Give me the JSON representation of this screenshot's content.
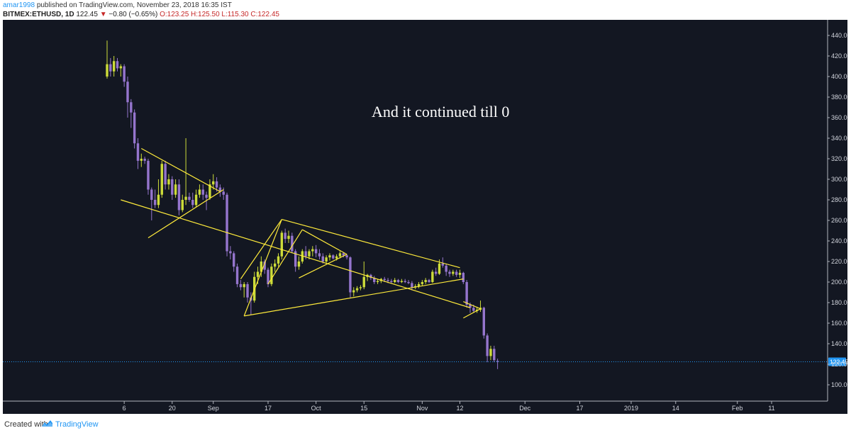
{
  "header": {
    "user": "amar1998",
    "published_text": "published on TradingView.com, November 23, 2018 16:35 IST",
    "symbol": "BITMEX:ETHUSD, 1D",
    "last": "122.45",
    "arrow": "▼",
    "change": "−0.80 (−0.65%)",
    "ohlc": "O:123.25 H:125.50 L:115.30 C:122.45"
  },
  "footer": {
    "created_with": "Created with",
    "brand": "TradingView"
  },
  "colors": {
    "background": "#131722",
    "up_candle": "#cddc39",
    "down_candle": "#9575cd",
    "trendline": "#ffeb3b",
    "price_line": "#2196f3"
  },
  "chart_data": {
    "type": "candlestick",
    "symbol": "BITMEX:ETHUSD",
    "interval": "1D",
    "annotation": "And it continued till 0",
    "last_price": "122.45",
    "grid": false,
    "y_axis": {
      "position": "right",
      "ylim": [
        100,
        440
      ],
      "ticks": [
        "440.00",
        "420.00",
        "400.00",
        "380.00",
        "360.00",
        "340.00",
        "320.00",
        "300.00",
        "280.00",
        "260.00",
        "240.00",
        "220.00",
        "200.00",
        "180.00",
        "160.00",
        "140.00",
        "120.00",
        "100.00"
      ]
    },
    "x_axis": {
      "ticks": [
        {
          "label": "6",
          "date": "2018-08-06"
        },
        {
          "label": "20",
          "date": "2018-08-20"
        },
        {
          "label": "Sep",
          "date": "2018-09-01"
        },
        {
          "label": "17",
          "date": "2018-09-17"
        },
        {
          "label": "Oct",
          "date": "2018-10-01"
        },
        {
          "label": "15",
          "date": "2018-10-15"
        },
        {
          "label": "Nov",
          "date": "2018-11-01"
        },
        {
          "label": "12",
          "date": "2018-11-12"
        },
        {
          "label": "Dec",
          "date": "2018-12-01"
        },
        {
          "label": "17",
          "date": "2018-12-17"
        },
        {
          "label": "2019",
          "date": "2019-01-01"
        },
        {
          "label": "14",
          "date": "2019-01-14"
        },
        {
          "label": "Feb",
          "date": "2019-02-01"
        },
        {
          "label": "11",
          "date": "2019-02-11"
        }
      ]
    },
    "candles": [
      {
        "date": "2018-08-01",
        "o": 400,
        "h": 435,
        "l": 398,
        "c": 412
      },
      {
        "date": "2018-08-02",
        "o": 412,
        "h": 418,
        "l": 400,
        "c": 405
      },
      {
        "date": "2018-08-03",
        "o": 405,
        "h": 420,
        "l": 400,
        "c": 415
      },
      {
        "date": "2018-08-04",
        "o": 415,
        "h": 418,
        "l": 405,
        "c": 408
      },
      {
        "date": "2018-08-05",
        "o": 408,
        "h": 412,
        "l": 400,
        "c": 410
      },
      {
        "date": "2018-08-06",
        "o": 410,
        "h": 412,
        "l": 390,
        "c": 395
      },
      {
        "date": "2018-08-07",
        "o": 395,
        "h": 400,
        "l": 360,
        "c": 375
      },
      {
        "date": "2018-08-08",
        "o": 375,
        "h": 378,
        "l": 350,
        "c": 365
      },
      {
        "date": "2018-08-09",
        "o": 365,
        "h": 368,
        "l": 330,
        "c": 335
      },
      {
        "date": "2018-08-10",
        "o": 335,
        "h": 340,
        "l": 310,
        "c": 318
      },
      {
        "date": "2018-08-11",
        "o": 318,
        "h": 325,
        "l": 312,
        "c": 320
      },
      {
        "date": "2018-08-12",
        "o": 320,
        "h": 322,
        "l": 315,
        "c": 318
      },
      {
        "date": "2018-08-13",
        "o": 318,
        "h": 320,
        "l": 285,
        "c": 290
      },
      {
        "date": "2018-08-14",
        "o": 290,
        "h": 292,
        "l": 260,
        "c": 280
      },
      {
        "date": "2018-08-15",
        "o": 280,
        "h": 290,
        "l": 272,
        "c": 275
      },
      {
        "date": "2018-08-16",
        "o": 275,
        "h": 300,
        "l": 272,
        "c": 285
      },
      {
        "date": "2018-08-17",
        "o": 285,
        "h": 318,
        "l": 282,
        "c": 315
      },
      {
        "date": "2018-08-18",
        "o": 315,
        "h": 318,
        "l": 290,
        "c": 295
      },
      {
        "date": "2018-08-19",
        "o": 295,
        "h": 305,
        "l": 290,
        "c": 300
      },
      {
        "date": "2018-08-20",
        "o": 300,
        "h": 303,
        "l": 280,
        "c": 285
      },
      {
        "date": "2018-08-21",
        "o": 285,
        "h": 300,
        "l": 282,
        "c": 295
      },
      {
        "date": "2018-08-22",
        "o": 295,
        "h": 300,
        "l": 265,
        "c": 270
      },
      {
        "date": "2018-08-23",
        "o": 270,
        "h": 285,
        "l": 268,
        "c": 280
      },
      {
        "date": "2018-08-24",
        "o": 280,
        "h": 340,
        "l": 275,
        "c": 283
      },
      {
        "date": "2018-08-25",
        "o": 283,
        "h": 287,
        "l": 278,
        "c": 280
      },
      {
        "date": "2018-08-26",
        "o": 280,
        "h": 287,
        "l": 272,
        "c": 275
      },
      {
        "date": "2018-08-27",
        "o": 275,
        "h": 290,
        "l": 273,
        "c": 285
      },
      {
        "date": "2018-08-28",
        "o": 285,
        "h": 295,
        "l": 282,
        "c": 290
      },
      {
        "date": "2018-08-29",
        "o": 290,
        "h": 295,
        "l": 280,
        "c": 285
      },
      {
        "date": "2018-08-30",
        "o": 285,
        "h": 288,
        "l": 270,
        "c": 282
      },
      {
        "date": "2018-08-31",
        "o": 282,
        "h": 300,
        "l": 280,
        "c": 295
      },
      {
        "date": "2018-09-01",
        "o": 295,
        "h": 305,
        "l": 290,
        "c": 298
      },
      {
        "date": "2018-09-02",
        "o": 298,
        "h": 302,
        "l": 288,
        "c": 292
      },
      {
        "date": "2018-09-03",
        "o": 292,
        "h": 295,
        "l": 283,
        "c": 288
      },
      {
        "date": "2018-09-04",
        "o": 288,
        "h": 292,
        "l": 280,
        "c": 285
      },
      {
        "date": "2018-09-05",
        "o": 285,
        "h": 287,
        "l": 225,
        "c": 230
      },
      {
        "date": "2018-09-06",
        "o": 230,
        "h": 235,
        "l": 222,
        "c": 228
      },
      {
        "date": "2018-09-07",
        "o": 228,
        "h": 230,
        "l": 210,
        "c": 215
      },
      {
        "date": "2018-09-08",
        "o": 215,
        "h": 218,
        "l": 195,
        "c": 198
      },
      {
        "date": "2018-09-09",
        "o": 198,
        "h": 202,
        "l": 192,
        "c": 195
      },
      {
        "date": "2018-09-10",
        "o": 195,
        "h": 200,
        "l": 185,
        "c": 198
      },
      {
        "date": "2018-09-11",
        "o": 198,
        "h": 200,
        "l": 180,
        "c": 185
      },
      {
        "date": "2018-09-12",
        "o": 185,
        "h": 190,
        "l": 168,
        "c": 182
      },
      {
        "date": "2018-09-13",
        "o": 182,
        "h": 210,
        "l": 180,
        "c": 205
      },
      {
        "date": "2018-09-14",
        "o": 205,
        "h": 215,
        "l": 198,
        "c": 210
      },
      {
        "date": "2018-09-15",
        "o": 210,
        "h": 225,
        "l": 205,
        "c": 220
      },
      {
        "date": "2018-09-16",
        "o": 220,
        "h": 222,
        "l": 208,
        "c": 212
      },
      {
        "date": "2018-09-17",
        "o": 212,
        "h": 214,
        "l": 195,
        "c": 198
      },
      {
        "date": "2018-09-18",
        "o": 198,
        "h": 218,
        "l": 196,
        "c": 215
      },
      {
        "date": "2018-09-19",
        "o": 215,
        "h": 222,
        "l": 210,
        "c": 218
      },
      {
        "date": "2018-09-20",
        "o": 218,
        "h": 228,
        "l": 215,
        "c": 225
      },
      {
        "date": "2018-09-21",
        "o": 225,
        "h": 250,
        "l": 222,
        "c": 248
      },
      {
        "date": "2018-09-22",
        "o": 248,
        "h": 252,
        "l": 238,
        "c": 242
      },
      {
        "date": "2018-09-23",
        "o": 242,
        "h": 250,
        "l": 238,
        "c": 245
      },
      {
        "date": "2018-09-24",
        "o": 245,
        "h": 248,
        "l": 228,
        "c": 230
      },
      {
        "date": "2018-09-25",
        "o": 230,
        "h": 232,
        "l": 210,
        "c": 215
      },
      {
        "date": "2018-09-26",
        "o": 215,
        "h": 225,
        "l": 212,
        "c": 220
      },
      {
        "date": "2018-09-27",
        "o": 220,
        "h": 232,
        "l": 218,
        "c": 230
      },
      {
        "date": "2018-09-28",
        "o": 230,
        "h": 235,
        "l": 222,
        "c": 225
      },
      {
        "date": "2018-09-29",
        "o": 225,
        "h": 232,
        "l": 222,
        "c": 230
      },
      {
        "date": "2018-09-30",
        "o": 230,
        "h": 235,
        "l": 225,
        "c": 232
      },
      {
        "date": "2018-10-01",
        "o": 232,
        "h": 236,
        "l": 224,
        "c": 228
      },
      {
        "date": "2018-10-02",
        "o": 228,
        "h": 232,
        "l": 222,
        "c": 225
      },
      {
        "date": "2018-10-03",
        "o": 225,
        "h": 228,
        "l": 218,
        "c": 220
      },
      {
        "date": "2018-10-04",
        "o": 220,
        "h": 226,
        "l": 218,
        "c": 224
      },
      {
        "date": "2018-10-05",
        "o": 224,
        "h": 228,
        "l": 221,
        "c": 226
      },
      {
        "date": "2018-10-06",
        "o": 226,
        "h": 227,
        "l": 222,
        "c": 223
      },
      {
        "date": "2018-10-07",
        "o": 223,
        "h": 227,
        "l": 221,
        "c": 225
      },
      {
        "date": "2018-10-08",
        "o": 225,
        "h": 230,
        "l": 223,
        "c": 228
      },
      {
        "date": "2018-10-09",
        "o": 228,
        "h": 229,
        "l": 224,
        "c": 226
      },
      {
        "date": "2018-10-10",
        "o": 226,
        "h": 227,
        "l": 222,
        "c": 224
      },
      {
        "date": "2018-10-11",
        "o": 224,
        "h": 225,
        "l": 185,
        "c": 190
      },
      {
        "date": "2018-10-12",
        "o": 190,
        "h": 195,
        "l": 186,
        "c": 192
      },
      {
        "date": "2018-10-13",
        "o": 192,
        "h": 196,
        "l": 190,
        "c": 194
      },
      {
        "date": "2018-10-14",
        "o": 194,
        "h": 197,
        "l": 192,
        "c": 195
      },
      {
        "date": "2018-10-15",
        "o": 195,
        "h": 220,
        "l": 193,
        "c": 205
      },
      {
        "date": "2018-10-16",
        "o": 205,
        "h": 208,
        "l": 201,
        "c": 207
      },
      {
        "date": "2018-10-17",
        "o": 207,
        "h": 208,
        "l": 202,
        "c": 204
      },
      {
        "date": "2018-10-18",
        "o": 204,
        "h": 206,
        "l": 198,
        "c": 200
      },
      {
        "date": "2018-10-19",
        "o": 200,
        "h": 203,
        "l": 198,
        "c": 201
      },
      {
        "date": "2018-10-20",
        "o": 201,
        "h": 204,
        "l": 199,
        "c": 203
      },
      {
        "date": "2018-10-21",
        "o": 203,
        "h": 205,
        "l": 200,
        "c": 202
      },
      {
        "date": "2018-10-22",
        "o": 202,
        "h": 204,
        "l": 199,
        "c": 201
      },
      {
        "date": "2018-10-23",
        "o": 201,
        "h": 203,
        "l": 199,
        "c": 200
      },
      {
        "date": "2018-10-24",
        "o": 200,
        "h": 204,
        "l": 199,
        "c": 202
      },
      {
        "date": "2018-10-25",
        "o": 202,
        "h": 203,
        "l": 199,
        "c": 200
      },
      {
        "date": "2018-10-26",
        "o": 200,
        "h": 203,
        "l": 199,
        "c": 201
      },
      {
        "date": "2018-10-27",
        "o": 201,
        "h": 203,
        "l": 199,
        "c": 200
      },
      {
        "date": "2018-10-28",
        "o": 200,
        "h": 202,
        "l": 198,
        "c": 199
      },
      {
        "date": "2018-10-29",
        "o": 199,
        "h": 201,
        "l": 192,
        "c": 195
      },
      {
        "date": "2018-10-30",
        "o": 195,
        "h": 198,
        "l": 193,
        "c": 196
      },
      {
        "date": "2018-10-31",
        "o": 196,
        "h": 200,
        "l": 194,
        "c": 198
      },
      {
        "date": "2018-11-01",
        "o": 198,
        "h": 202,
        "l": 196,
        "c": 200
      },
      {
        "date": "2018-11-02",
        "o": 200,
        "h": 204,
        "l": 198,
        "c": 202
      },
      {
        "date": "2018-11-03",
        "o": 202,
        "h": 203,
        "l": 199,
        "c": 200
      },
      {
        "date": "2018-11-04",
        "o": 200,
        "h": 212,
        "l": 199,
        "c": 210
      },
      {
        "date": "2018-11-05",
        "o": 210,
        "h": 214,
        "l": 206,
        "c": 208
      },
      {
        "date": "2018-11-06",
        "o": 208,
        "h": 222,
        "l": 207,
        "c": 218
      },
      {
        "date": "2018-11-07",
        "o": 218,
        "h": 224,
        "l": 214,
        "c": 216
      },
      {
        "date": "2018-11-08",
        "o": 216,
        "h": 218,
        "l": 206,
        "c": 210
      },
      {
        "date": "2018-11-09",
        "o": 210,
        "h": 212,
        "l": 205,
        "c": 208
      },
      {
        "date": "2018-11-10",
        "o": 208,
        "h": 212,
        "l": 206,
        "c": 210
      },
      {
        "date": "2018-11-11",
        "o": 210,
        "h": 212,
        "l": 205,
        "c": 207
      },
      {
        "date": "2018-11-12",
        "o": 207,
        "h": 212,
        "l": 204,
        "c": 209
      },
      {
        "date": "2018-11-13",
        "o": 209,
        "h": 210,
        "l": 198,
        "c": 200
      },
      {
        "date": "2018-11-14",
        "o": 200,
        "h": 202,
        "l": 175,
        "c": 178
      },
      {
        "date": "2018-11-15",
        "o": 178,
        "h": 180,
        "l": 170,
        "c": 175
      },
      {
        "date": "2018-11-16",
        "o": 175,
        "h": 178,
        "l": 170,
        "c": 172
      },
      {
        "date": "2018-11-17",
        "o": 172,
        "h": 176,
        "l": 170,
        "c": 173
      },
      {
        "date": "2018-11-18",
        "o": 173,
        "h": 182,
        "l": 171,
        "c": 175
      },
      {
        "date": "2018-11-19",
        "o": 175,
        "h": 176,
        "l": 145,
        "c": 148
      },
      {
        "date": "2018-11-20",
        "o": 148,
        "h": 150,
        "l": 122,
        "c": 128
      },
      {
        "date": "2018-11-21",
        "o": 128,
        "h": 138,
        "l": 124,
        "c": 135
      },
      {
        "date": "2018-11-22",
        "o": 135,
        "h": 138,
        "l": 122,
        "c": 124
      },
      {
        "date": "2018-11-23",
        "o": 123.25,
        "h": 125.5,
        "l": 115.3,
        "c": 122.45
      }
    ],
    "trendlines": [
      {
        "from": [
          "2018-08-05",
          280
        ],
        "to": [
          "2018-11-15",
          175
        ]
      },
      {
        "from": [
          "2018-08-11",
          330
        ],
        "to": [
          "2018-09-03",
          288
        ]
      },
      {
        "from": [
          "2018-08-13",
          243
        ],
        "to": [
          "2018-09-04",
          290
        ]
      },
      {
        "from": [
          "2018-09-10",
          167
        ],
        "to": [
          "2018-11-13",
          203
        ]
      },
      {
        "from": [
          "2018-09-10",
          167
        ],
        "to": [
          "2018-09-21",
          261
        ]
      },
      {
        "from": [
          "2018-09-21",
          261
        ],
        "to": [
          "2018-11-12",
          214
        ]
      },
      {
        "from": [
          "2018-09-09",
          203
        ],
        "to": [
          "2018-09-21",
          261
        ]
      },
      {
        "from": [
          "2018-09-17",
          198
        ],
        "to": [
          "2018-09-27",
          251
        ]
      },
      {
        "from": [
          "2018-09-27",
          251
        ],
        "to": [
          "2018-10-10",
          227
        ]
      },
      {
        "from": [
          "2018-09-26",
          204
        ],
        "to": [
          "2018-10-10",
          227
        ]
      },
      {
        "from": [
          "2018-11-13",
          181
        ],
        "to": [
          "2018-11-18",
          174
        ]
      },
      {
        "from": [
          "2018-11-13",
          165
        ],
        "to": [
          "2018-11-18",
          174
        ]
      }
    ]
  }
}
